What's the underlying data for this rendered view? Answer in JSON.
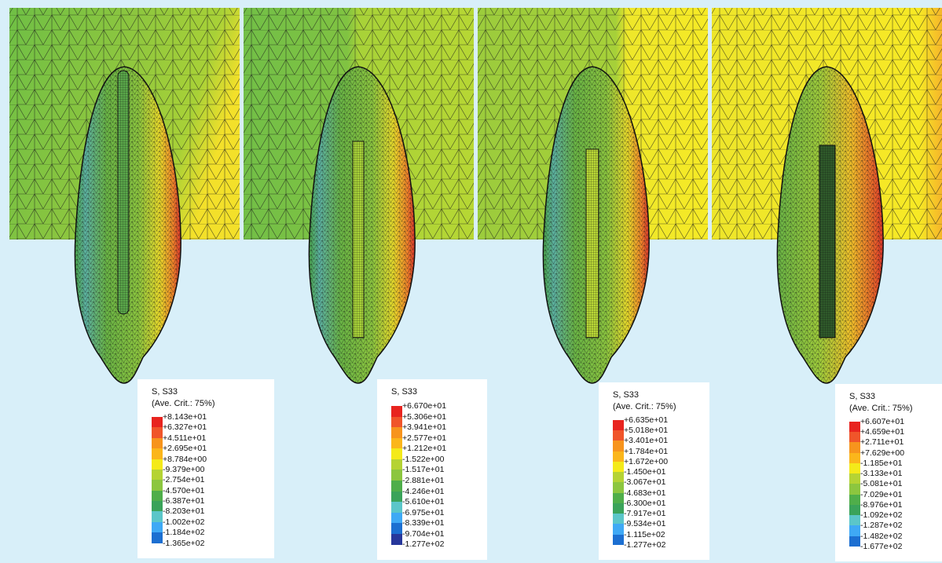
{
  "panels": [
    {
      "legend": {
        "title": "S, S33",
        "subtitle": "(Ave. Crit.: 75%)",
        "labels": [
          "+8.143e+01",
          "+6.327e+01",
          "+4.511e+01",
          "+2.695e+01",
          "+8.784e+00",
          "-9.379e+00",
          "-2.754e+01",
          "-4.570e+01",
          "-6.387e+01",
          "-8.203e+01",
          "-1.002e+02",
          "-1.184e+02",
          "-1.365e+02"
        ]
      }
    },
    {
      "legend": {
        "title": "S, S33",
        "labels": [
          "+6.670e+01",
          "+5.306e+01",
          "+3.941e+01",
          "+2.577e+01",
          "+1.212e+01",
          "-1.522e+00",
          "-1.517e+01",
          "-2.881e+01",
          "-4.246e+01",
          "-5.610e+01",
          "-6.975e+01",
          "-8.339e+01",
          "-9.704e+01",
          "-1.277e+02"
        ]
      }
    },
    {
      "legend": {
        "title": "S, S33",
        "subtitle": "(Ave. Crit.: 75%)",
        "labels": [
          "+6.635e+01",
          "+5.018e+01",
          "+3.401e+01",
          "+1.784e+01",
          "+1.672e+00",
          "-1.450e+01",
          "-3.067e+01",
          "-4.683e+01",
          "-6.300e+01",
          "-7.917e+01",
          "-9.534e+01",
          "-1.115e+02",
          "-1.277e+02"
        ]
      }
    },
    {
      "legend": {
        "title": "S, S33",
        "subtitle": "(Ave. Crit.: 75%)",
        "labels": [
          "+6.607e+01",
          "+4.659e+01",
          "+2.711e+01",
          "+7.629e+00",
          "-1.185e+01",
          "-3.133e+01",
          "-5.081e+01",
          "-7.029e+01",
          "-8.976e+01",
          "-1.092e+02",
          "-1.287e+02",
          "-1.482e+02",
          "-1.677e+02"
        ]
      }
    }
  ]
}
